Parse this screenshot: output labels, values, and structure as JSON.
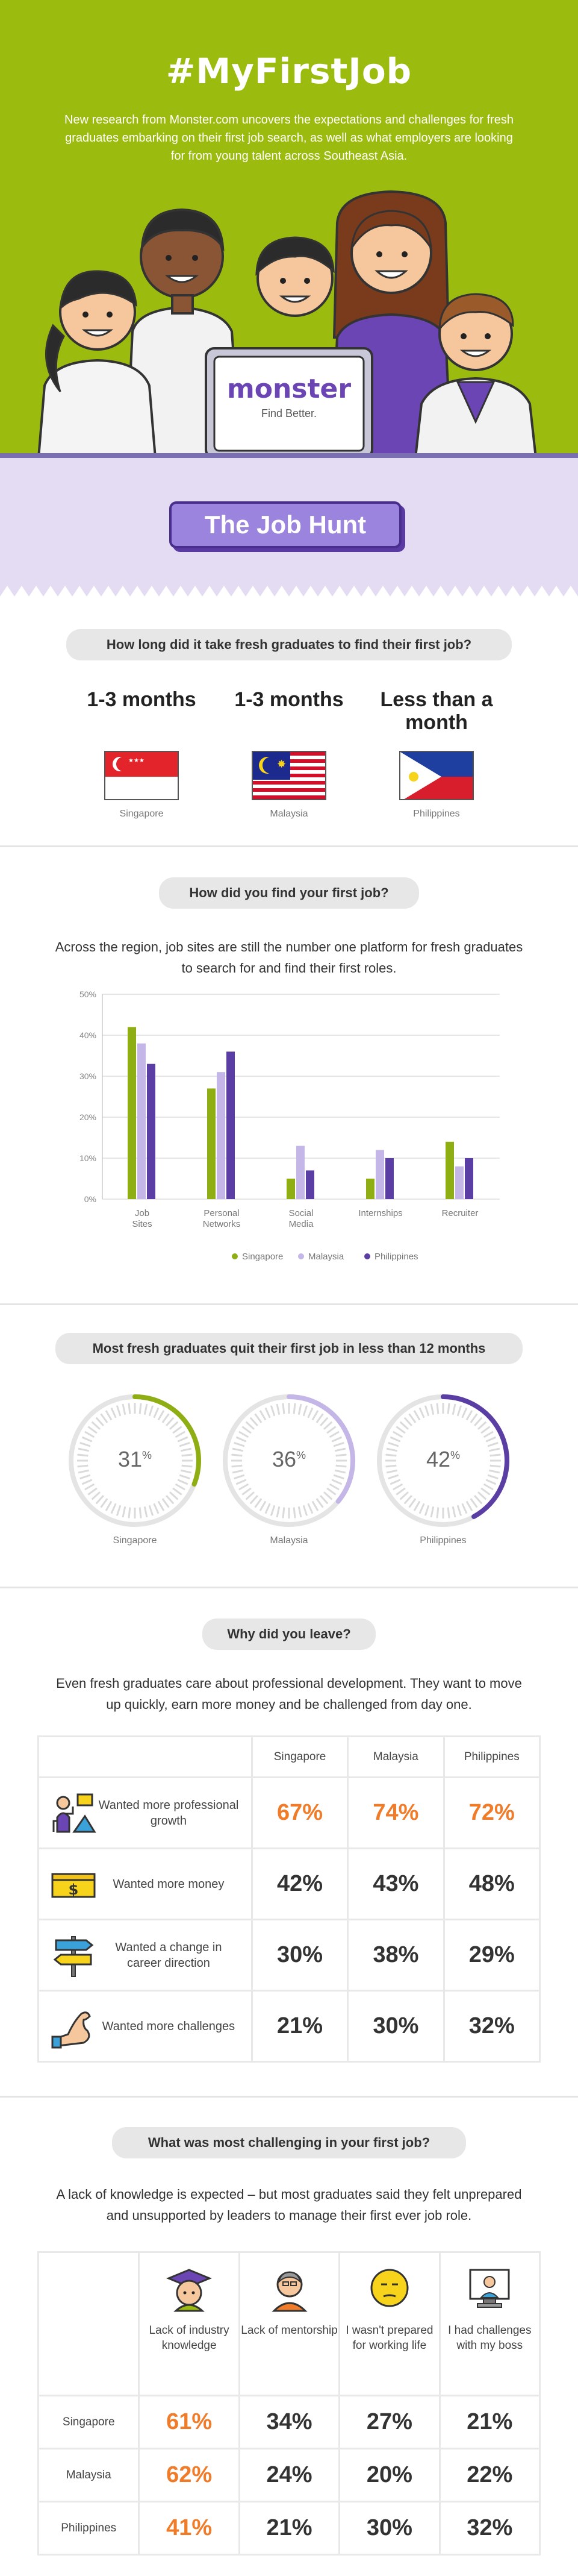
{
  "hero": {
    "title": "#MyFirstJob",
    "intro": "New research from Monster.com uncovers the expectations and challenges for fresh graduates embarking on their first job search, as well as what employers are looking for from young talent across Southeast Asia.",
    "logo_text": "monster",
    "logo_tagline": "Find Better."
  },
  "banner": {
    "label": "The Job Hunt"
  },
  "q1": {
    "question": "How long did it take fresh graduates to find their first job?",
    "items": [
      {
        "value": "1-3 months",
        "country": "Singapore"
      },
      {
        "value": "1-3 months",
        "country": "Malaysia"
      },
      {
        "value": "Less than a month",
        "country": "Philippines"
      }
    ]
  },
  "q2": {
    "question": "How did you find your first job?",
    "lead": "Across the region, job sites are still the number one platform for fresh graduates to search for and find their first roles."
  },
  "chart_data": {
    "type": "bar",
    "categories": [
      "Job Sites",
      "Personal Networks",
      "Social Media",
      "Internships",
      "Recruiter"
    ],
    "series": [
      {
        "name": "Singapore",
        "color": "#8fae14",
        "values": [
          42,
          27,
          5,
          5,
          14
        ]
      },
      {
        "name": "Malaysia",
        "color": "#c4b6e6",
        "values": [
          38,
          31,
          13,
          12,
          8
        ]
      },
      {
        "name": "Philippines",
        "color": "#5b3ea3",
        "values": [
          33,
          36,
          7,
          10,
          10
        ]
      }
    ],
    "ylim": [
      0,
      50
    ],
    "yticks": [
      "0%",
      "10%",
      "20%",
      "30%",
      "40%",
      "50%"
    ],
    "grid": true,
    "legend": "bottom"
  },
  "q3": {
    "question": "Most fresh graduates quit their first job in less than 12 months",
    "rings": [
      {
        "value": 31,
        "unit": "%",
        "country": "Singapore",
        "color": "#8fae14"
      },
      {
        "value": 36,
        "unit": "%",
        "country": "Malaysia",
        "color": "#c4b6e6"
      },
      {
        "value": 42,
        "unit": "%",
        "country": "Philippines",
        "color": "#5b3ea3"
      }
    ]
  },
  "q4": {
    "question": "Why did you leave?",
    "lead": "Even fresh graduates care about professional development. They want to move up quickly, earn more money and be challenged from day one.",
    "columns": [
      "Singapore",
      "Malaysia",
      "Philippines"
    ],
    "rows": [
      {
        "label": "Wanted more professional growth",
        "icon": "growth-icon",
        "values": [
          "67%",
          "74%",
          "72%"
        ],
        "highlight": true
      },
      {
        "label": "Wanted more money",
        "icon": "money-icon",
        "values": [
          "42%",
          "43%",
          "48%"
        ],
        "highlight": false
      },
      {
        "label": "Wanted a change in career direction",
        "icon": "signpost-icon",
        "values": [
          "30%",
          "38%",
          "29%"
        ],
        "highlight": false
      },
      {
        "label": "Wanted more challenges",
        "icon": "muscle-icon",
        "values": [
          "21%",
          "30%",
          "32%"
        ],
        "highlight": false
      }
    ]
  },
  "q5": {
    "question": "What was most challenging in your first job?",
    "lead": "A lack of knowledge is expected – but most graduates said they felt unprepared and unsupported by leaders to manage their first ever job role.",
    "columns": [
      {
        "label": "Lack of industry knowledge",
        "icon": "graduate-icon"
      },
      {
        "label": "Lack of mentorship",
        "icon": "mentor-icon"
      },
      {
        "label": "I wasn't prepared for working life",
        "icon": "unimpressed-face-icon"
      },
      {
        "label": "I had challenges with my boss",
        "icon": "boss-screen-icon"
      }
    ],
    "rows": [
      {
        "country": "Singapore",
        "values": [
          "61%",
          "34%",
          "27%",
          "21%"
        ]
      },
      {
        "country": "Malaysia",
        "values": [
          "62%",
          "24%",
          "20%",
          "22%"
        ]
      },
      {
        "country": "Philippines",
        "values": [
          "41%",
          "21%",
          "30%",
          "32%"
        ]
      }
    ]
  }
}
